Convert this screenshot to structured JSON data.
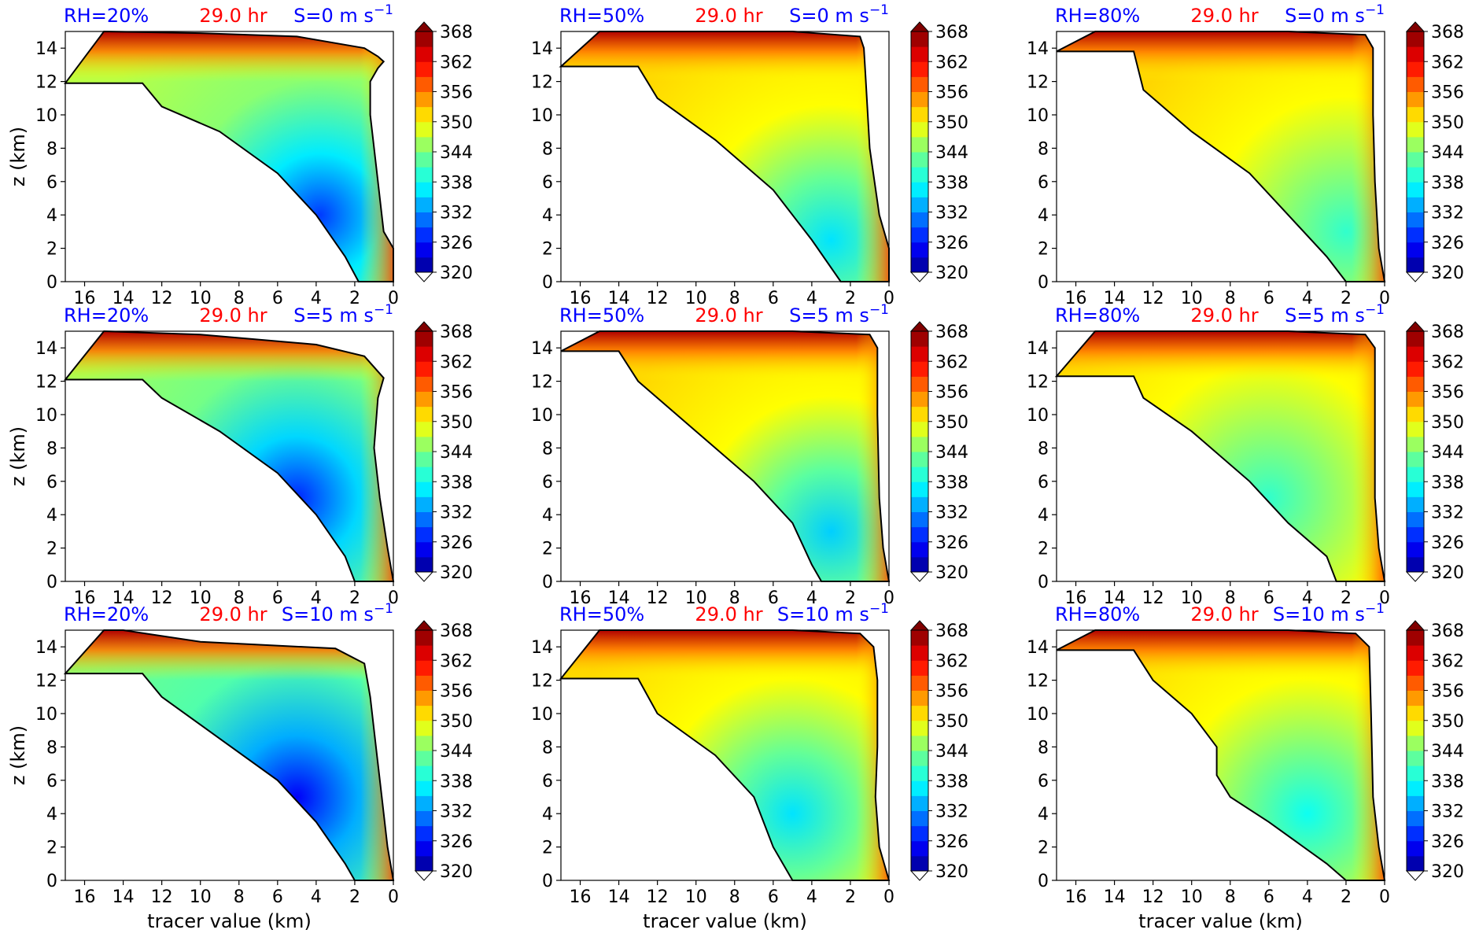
{
  "figure": {
    "colors": {
      "rh_title": "#0000ff",
      "time_title": "#ff0000",
      "contour": "#000000",
      "below_min": "#ffffff"
    }
  },
  "chart_data": [
    {
      "type": "heatmap",
      "panel": "RH=20%, S=0",
      "title_left": "RH=20%",
      "title_center": "29.0 hr",
      "title_right": "S=0 m s",
      "title_right_sup": "−1",
      "xlabel": "",
      "ylabel": "z (km)",
      "xlim": [
        17,
        0
      ],
      "ylim": [
        0,
        15
      ],
      "x_inverted": true,
      "xticks": [
        "16",
        "14",
        "12",
        "10",
        "8",
        "6",
        "4",
        "2",
        "0"
      ],
      "yticks": [
        "0",
        "2",
        "4",
        "6",
        "8",
        "10",
        "12",
        "14"
      ],
      "colorbar": {
        "vmin": 320,
        "vmax": 368,
        "ticks": [
          "320",
          "326",
          "332",
          "338",
          "344",
          "350",
          "356",
          "362",
          "368"
        ],
        "extend": "both"
      },
      "field_min_value": 328,
      "min_region_center": [
        3.8,
        4.0
      ],
      "field_max_value": 368,
      "outline": [
        [
          17,
          11.9
        ],
        [
          13,
          11.9
        ],
        [
          12,
          10.5
        ],
        [
          9,
          9
        ],
        [
          6,
          6.5
        ],
        [
          4,
          4
        ],
        [
          2.5,
          1.5
        ],
        [
          1.8,
          0
        ],
        [
          0,
          0
        ],
        [
          0,
          2
        ],
        [
          0.5,
          3
        ],
        [
          0.8,
          6
        ],
        [
          1.0,
          8
        ],
        [
          1.2,
          10
        ],
        [
          1.2,
          12
        ],
        [
          0.8,
          12.8
        ],
        [
          0.5,
          13.2
        ],
        [
          0.8,
          13.5
        ],
        [
          1.5,
          14
        ],
        [
          5,
          14.7
        ],
        [
          10,
          14.9
        ],
        [
          15,
          15
        ]
      ]
    },
    {
      "type": "heatmap",
      "panel": "RH=50%, S=0",
      "title_left": "RH=50%",
      "title_center": "29.0 hr",
      "title_right": "S=0 m s",
      "title_right_sup": "−1",
      "xlabel": "",
      "ylabel": "",
      "xlim": [
        17,
        0
      ],
      "ylim": [
        0,
        15
      ],
      "x_inverted": true,
      "xticks": [
        "16",
        "14",
        "12",
        "10",
        "8",
        "6",
        "4",
        "2",
        "0"
      ],
      "yticks": [
        "0",
        "2",
        "4",
        "6",
        "8",
        "10",
        "12",
        "14"
      ],
      "colorbar": {
        "vmin": 320,
        "vmax": 368,
        "ticks": [
          "320",
          "326",
          "332",
          "338",
          "344",
          "350",
          "356",
          "362",
          "368"
        ],
        "extend": "both"
      },
      "field_min_value": 336,
      "min_region_center": [
        3.0,
        2.5
      ],
      "field_max_value": 368,
      "outline": [
        [
          17,
          12.9
        ],
        [
          13,
          12.9
        ],
        [
          12,
          11
        ],
        [
          9,
          8.5
        ],
        [
          6,
          5.5
        ],
        [
          4,
          2.5
        ],
        [
          2.5,
          0
        ],
        [
          0,
          0
        ],
        [
          0,
          2
        ],
        [
          0.5,
          4
        ],
        [
          1.0,
          8
        ],
        [
          1.2,
          12
        ],
        [
          1.3,
          14
        ],
        [
          1.5,
          14.7
        ],
        [
          5,
          15
        ],
        [
          15,
          15
        ]
      ]
    },
    {
      "type": "heatmap",
      "panel": "RH=80%, S=0",
      "title_left": "RH=80%",
      "title_center": "29.0 hr",
      "title_right": "S=0 m s",
      "title_right_sup": "−1",
      "xlabel": "",
      "ylabel": "",
      "xlim": [
        17,
        0
      ],
      "ylim": [
        0,
        15
      ],
      "x_inverted": true,
      "xticks": [
        "16",
        "14",
        "12",
        "10",
        "8",
        "6",
        "4",
        "2",
        "0"
      ],
      "yticks": [
        "0",
        "2",
        "4",
        "6",
        "8",
        "10",
        "12",
        "14"
      ],
      "colorbar": {
        "vmin": 320,
        "vmax": 368,
        "ticks": [
          "320",
          "326",
          "332",
          "338",
          "344",
          "350",
          "356",
          "362",
          "368"
        ],
        "extend": "both"
      },
      "field_min_value": 340,
      "min_region_center": [
        2.0,
        3.0
      ],
      "field_max_value": 368,
      "outline": [
        [
          17,
          13.8
        ],
        [
          13,
          13.8
        ],
        [
          12.5,
          11.5
        ],
        [
          10,
          9
        ],
        [
          7,
          6.5
        ],
        [
          5,
          4
        ],
        [
          3,
          1.5
        ],
        [
          2,
          0
        ],
        [
          0,
          0
        ],
        [
          0.3,
          2
        ],
        [
          0.5,
          6
        ],
        [
          0.6,
          10
        ],
        [
          0.6,
          14
        ],
        [
          1.0,
          14.8
        ],
        [
          5,
          15
        ],
        [
          15,
          15
        ]
      ]
    },
    {
      "type": "heatmap",
      "panel": "RH=20%, S=5",
      "title_left": "RH=20%",
      "title_center": "29.0 hr",
      "title_right": "S=5 m s",
      "title_right_sup": "−1",
      "xlabel": "",
      "ylabel": "z (km)",
      "xlim": [
        17,
        0
      ],
      "ylim": [
        0,
        15
      ],
      "x_inverted": true,
      "xticks": [
        "16",
        "14",
        "12",
        "10",
        "8",
        "6",
        "4",
        "2",
        "0"
      ],
      "yticks": [
        "0",
        "2",
        "4",
        "6",
        "8",
        "10",
        "12",
        "14"
      ],
      "colorbar": {
        "vmin": 320,
        "vmax": 368,
        "ticks": [
          "320",
          "326",
          "332",
          "338",
          "344",
          "350",
          "356",
          "362",
          "368"
        ],
        "extend": "both"
      },
      "field_min_value": 327,
      "min_region_center": [
        5.0,
        5.0
      ],
      "field_max_value": 368,
      "outline": [
        [
          17,
          12.1
        ],
        [
          13,
          12.1
        ],
        [
          12,
          11
        ],
        [
          9,
          9
        ],
        [
          6,
          6.5
        ],
        [
          4,
          4
        ],
        [
          2.5,
          1.5
        ],
        [
          2,
          0
        ],
        [
          0,
          0
        ],
        [
          0.3,
          2
        ],
        [
          0.7,
          5
        ],
        [
          1.0,
          8
        ],
        [
          0.8,
          11
        ],
        [
          0.5,
          12.2
        ],
        [
          1.5,
          13.5
        ],
        [
          4,
          14.2
        ],
        [
          10,
          14.8
        ],
        [
          15,
          15
        ]
      ]
    },
    {
      "type": "heatmap",
      "panel": "RH=50%, S=5",
      "title_left": "RH=50%",
      "title_center": "29.0 hr",
      "title_right": "S=5 m s",
      "title_right_sup": "−1",
      "xlabel": "",
      "ylabel": "",
      "xlim": [
        17,
        0
      ],
      "ylim": [
        0,
        15
      ],
      "x_inverted": true,
      "xticks": [
        "16",
        "14",
        "12",
        "10",
        "8",
        "6",
        "4",
        "2",
        "0"
      ],
      "yticks": [
        "0",
        "2",
        "4",
        "6",
        "8",
        "10",
        "12",
        "14"
      ],
      "colorbar": {
        "vmin": 320,
        "vmax": 368,
        "ticks": [
          "320",
          "326",
          "332",
          "338",
          "344",
          "350",
          "356",
          "362",
          "368"
        ],
        "extend": "both"
      },
      "field_min_value": 335,
      "min_region_center": [
        3.0,
        3.0
      ],
      "field_max_value": 368,
      "outline": [
        [
          17,
          13.8
        ],
        [
          14,
          13.8
        ],
        [
          13,
          12
        ],
        [
          10,
          9
        ],
        [
          7,
          6
        ],
        [
          5,
          3.5
        ],
        [
          4,
          1
        ],
        [
          3.5,
          0
        ],
        [
          0,
          0
        ],
        [
          0.3,
          2
        ],
        [
          0.5,
          5
        ],
        [
          0.6,
          10
        ],
        [
          0.6,
          14
        ],
        [
          1.0,
          14.8
        ],
        [
          5,
          15
        ],
        [
          15,
          15
        ]
      ]
    },
    {
      "type": "heatmap",
      "panel": "RH=80%, S=5",
      "title_left": "RH=80%",
      "title_center": "29.0 hr",
      "title_right": "S=5 m s",
      "title_right_sup": "−1",
      "xlabel": "",
      "ylabel": "",
      "xlim": [
        17,
        0
      ],
      "ylim": [
        0,
        15
      ],
      "x_inverted": true,
      "xticks": [
        "16",
        "14",
        "12",
        "10",
        "8",
        "6",
        "4",
        "2",
        "0"
      ],
      "yticks": [
        "0",
        "2",
        "4",
        "6",
        "8",
        "10",
        "12",
        "14"
      ],
      "colorbar": {
        "vmin": 320,
        "vmax": 368,
        "ticks": [
          "320",
          "326",
          "332",
          "338",
          "344",
          "350",
          "356",
          "362",
          "368"
        ],
        "extend": "both"
      },
      "field_min_value": 340,
      "min_region_center": [
        6.0,
        5.0
      ],
      "field_max_value": 368,
      "outline": [
        [
          17,
          12.3
        ],
        [
          13,
          12.3
        ],
        [
          12.5,
          11
        ],
        [
          10,
          9
        ],
        [
          7,
          6
        ],
        [
          5,
          3.5
        ],
        [
          3,
          1.5
        ],
        [
          2.5,
          0
        ],
        [
          0,
          0
        ],
        [
          0.3,
          2
        ],
        [
          0.5,
          5
        ],
        [
          0.5,
          10
        ],
        [
          0.5,
          14
        ],
        [
          1.0,
          14.8
        ],
        [
          5,
          15
        ],
        [
          15,
          15
        ]
      ]
    },
    {
      "type": "heatmap",
      "panel": "RH=20%, S=10",
      "title_left": "RH=20%",
      "title_center": "29.0 hr",
      "title_right": "S=10 m s",
      "title_right_sup": "−1",
      "xlabel": "tracer value (km)",
      "ylabel": "z (km)",
      "xlim": [
        17,
        0
      ],
      "ylim": [
        0,
        15
      ],
      "x_inverted": true,
      "xticks": [
        "16",
        "14",
        "12",
        "10",
        "8",
        "6",
        "4",
        "2",
        "0"
      ],
      "yticks": [
        "0",
        "2",
        "4",
        "6",
        "8",
        "10",
        "12",
        "14"
      ],
      "colorbar": {
        "vmin": 320,
        "vmax": 368,
        "ticks": [
          "320",
          "326",
          "332",
          "338",
          "344",
          "350",
          "356",
          "362",
          "368"
        ],
        "extend": "both"
      },
      "field_min_value": 325,
      "min_region_center": [
        5.0,
        5.0
      ],
      "field_max_value": 368,
      "outline": [
        [
          17,
          12.4
        ],
        [
          13,
          12.4
        ],
        [
          12,
          11
        ],
        [
          9,
          8.5
        ],
        [
          6,
          6
        ],
        [
          4,
          3.5
        ],
        [
          2.5,
          1
        ],
        [
          2,
          0
        ],
        [
          0,
          0
        ],
        [
          0.3,
          2
        ],
        [
          0.6,
          5
        ],
        [
          0.9,
          8
        ],
        [
          1.2,
          11
        ],
        [
          1.5,
          13
        ],
        [
          3,
          13.9
        ],
        [
          10,
          14.3
        ],
        [
          14,
          15
        ],
        [
          15,
          15
        ]
      ]
    },
    {
      "type": "heatmap",
      "panel": "RH=50%, S=10",
      "title_left": "RH=50%",
      "title_center": "29.0 hr",
      "title_right": "S=10 m s",
      "title_right_sup": "−1",
      "xlabel": "tracer value (km)",
      "ylabel": "",
      "xlim": [
        17,
        0
      ],
      "ylim": [
        0,
        15
      ],
      "x_inverted": true,
      "xticks": [
        "16",
        "14",
        "12",
        "10",
        "8",
        "6",
        "4",
        "2",
        "0"
      ],
      "yticks": [
        "0",
        "2",
        "4",
        "6",
        "8",
        "10",
        "12",
        "14"
      ],
      "colorbar": {
        "vmin": 320,
        "vmax": 368,
        "ticks": [
          "320",
          "326",
          "332",
          "338",
          "344",
          "350",
          "356",
          "362",
          "368"
        ],
        "extend": "both"
      },
      "field_min_value": 336,
      "min_region_center": [
        5.0,
        4.0
      ],
      "field_max_value": 368,
      "outline": [
        [
          17,
          12.1
        ],
        [
          13,
          12.1
        ],
        [
          12,
          10
        ],
        [
          9,
          7.5
        ],
        [
          7,
          5
        ],
        [
          6,
          2
        ],
        [
          5,
          0
        ],
        [
          0,
          0
        ],
        [
          0.5,
          2
        ],
        [
          0.7,
          5
        ],
        [
          0.6,
          8
        ],
        [
          0.6,
          12
        ],
        [
          0.8,
          14
        ],
        [
          1.5,
          14.8
        ],
        [
          5,
          15
        ],
        [
          15,
          15
        ]
      ]
    },
    {
      "type": "heatmap",
      "panel": "RH=80%, S=10",
      "title_left": "RH=80%",
      "title_center": "29.0 hr",
      "title_right": "S=10 m s",
      "title_right_sup": "−1",
      "xlabel": "tracer value (km)",
      "ylabel": "",
      "xlim": [
        17,
        0
      ],
      "ylim": [
        0,
        15
      ],
      "x_inverted": true,
      "xticks": [
        "16",
        "14",
        "12",
        "10",
        "8",
        "6",
        "4",
        "2",
        "0"
      ],
      "yticks": [
        "0",
        "2",
        "4",
        "6",
        "8",
        "10",
        "12",
        "14"
      ],
      "colorbar": {
        "vmin": 320,
        "vmax": 368,
        "ticks": [
          "320",
          "326",
          "332",
          "338",
          "344",
          "350",
          "356",
          "362",
          "368"
        ],
        "extend": "both"
      },
      "field_min_value": 338,
      "min_region_center": [
        4.0,
        4.0
      ],
      "field_max_value": 368,
      "outline": [
        [
          17,
          13.8
        ],
        [
          13,
          13.8
        ],
        [
          12,
          12
        ],
        [
          10,
          10
        ],
        [
          8.7,
          8
        ],
        [
          8.7,
          6.3
        ],
        [
          8,
          5
        ],
        [
          6,
          3.5
        ],
        [
          3,
          1
        ],
        [
          2,
          0
        ],
        [
          0,
          0
        ],
        [
          0.3,
          2
        ],
        [
          0.6,
          5
        ],
        [
          0.7,
          10
        ],
        [
          0.8,
          14
        ],
        [
          1.5,
          14.8
        ],
        [
          5,
          15
        ],
        [
          15,
          15
        ]
      ]
    }
  ]
}
